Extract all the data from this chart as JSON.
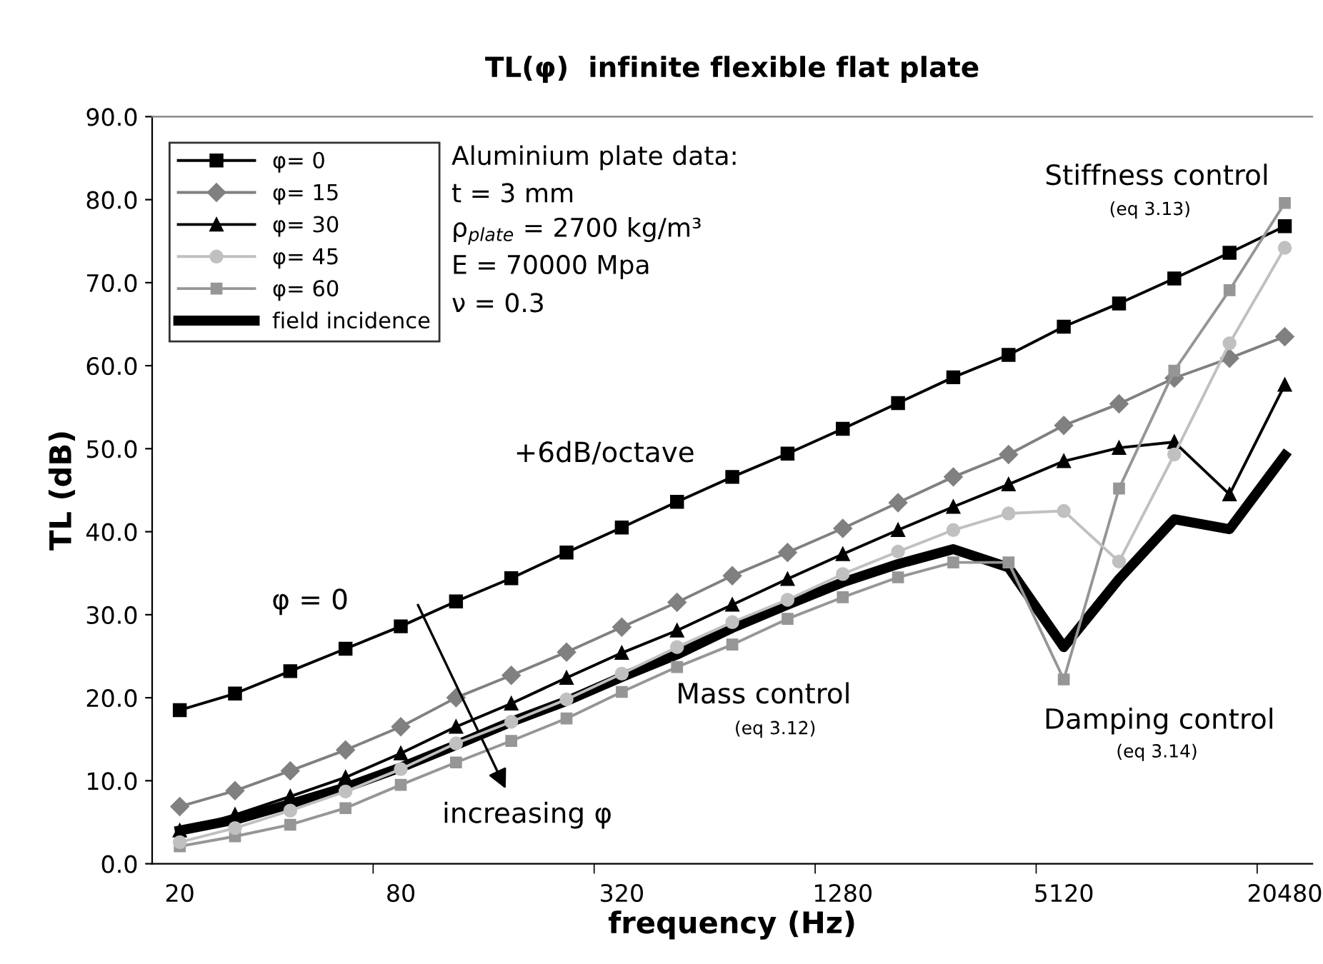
{
  "chart_data": {
    "type": "line",
    "title": "TL(φ)  infinite flexible flat plate",
    "xlabel": "frequency (Hz)",
    "ylabel": "TL (dB)",
    "categories": [
      "20",
      null,
      null,
      null,
      "80",
      null,
      null,
      null,
      "320",
      null,
      null,
      null,
      "1280",
      null,
      null,
      null,
      "5120",
      null,
      null,
      null,
      "20480"
    ],
    "series": [
      {
        "name": "φ= 0",
        "color": "#000000",
        "marker": "square",
        "values": [
          18.5,
          20.5,
          23.2,
          25.9,
          28.6,
          31.6,
          34.4,
          37.5,
          40.5,
          43.6,
          46.6,
          49.4,
          52.4,
          55.5,
          58.6,
          61.3,
          64.7,
          67.5,
          70.5,
          73.6,
          76.8
        ]
      },
      {
        "name": "φ= 15",
        "color": "#808080",
        "marker": "diamond",
        "values": [
          6.9,
          8.8,
          11.2,
          13.7,
          16.5,
          20.0,
          22.7,
          25.5,
          28.5,
          31.5,
          34.7,
          37.5,
          40.4,
          43.5,
          46.6,
          49.3,
          52.8,
          55.4,
          58.5,
          60.9,
          63.5
        ]
      },
      {
        "name": "φ= 30",
        "color": "#000000",
        "marker": "triangle",
        "values": [
          4.0,
          5.9,
          8.1,
          10.4,
          13.3,
          16.5,
          19.3,
          22.4,
          25.4,
          28.1,
          31.2,
          34.3,
          37.3,
          40.2,
          43.0,
          45.7,
          48.5,
          50.1,
          50.8,
          44.5,
          57.7
        ]
      },
      {
        "name": "φ= 45",
        "color": "#c0c0c0",
        "marker": "circle",
        "values": [
          2.6,
          4.3,
          6.4,
          8.7,
          11.4,
          14.5,
          17.1,
          19.8,
          22.9,
          26.1,
          29.1,
          31.8,
          34.9,
          37.6,
          40.2,
          42.2,
          42.5,
          36.4,
          49.3,
          62.7,
          74.2
        ]
      },
      {
        "name": "φ= 60",
        "color": "#969696",
        "marker": "square",
        "values": [
          2.1,
          3.3,
          4.7,
          6.7,
          9.5,
          12.2,
          14.8,
          17.5,
          20.7,
          23.7,
          26.4,
          29.5,
          32.1,
          34.5,
          36.3,
          36.3,
          22.2,
          45.2,
          59.4,
          69.1,
          79.6
        ]
      },
      {
        "name": "field incidence",
        "color": "#000000",
        "marker": "none",
        "values": [
          4.0,
          5.3,
          7.2,
          9.2,
          11.6,
          14.3,
          17.1,
          19.6,
          22.5,
          25.2,
          28.4,
          31.2,
          33.9,
          36.1,
          37.9,
          35.7,
          26.1,
          34.3,
          41.5,
          40.3,
          49.2
        ]
      }
    ],
    "ylim": [
      0,
      90
    ],
    "yticks": [
      {
        "value": 0,
        "label": "0.0"
      },
      {
        "value": 10,
        "label": "10.0"
      },
      {
        "value": 20,
        "label": "20.0"
      },
      {
        "value": 30,
        "label": "30.0"
      },
      {
        "value": 40,
        "label": "40.0"
      },
      {
        "value": 50,
        "label": "50.0"
      },
      {
        "value": 60,
        "label": "60.0"
      },
      {
        "value": 70,
        "label": "70.0"
      },
      {
        "value": 80,
        "label": "80.0"
      },
      {
        "value": 90,
        "label": "90.0"
      }
    ],
    "legend": "top left",
    "grid": false,
    "line_style": "solid",
    "annotations": [
      "Aluminium plate data:",
      "t = 3 mm",
      "ρ$_{plate}$ = 2700 kg/m³",
      "E = 70000 Mpa",
      "ν = 0.3",
      "+6dB/octave",
      "φ = 0",
      "increasing φ",
      "Mass control",
      "(eq 3.12)",
      "Stiffness control",
      "(eq 3.13)",
      "Damping control",
      "(eq 3.14)"
    ]
  }
}
